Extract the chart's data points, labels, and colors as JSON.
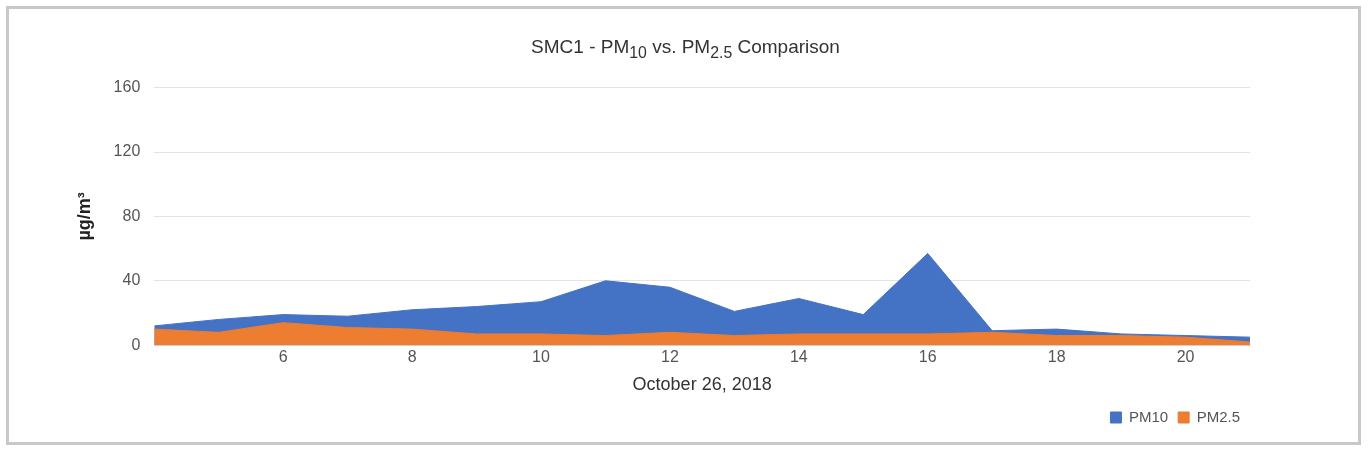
{
  "chart_data": {
    "type": "area",
    "title": "SMC1 - PM$_{10}$  vs.  PM$_{2.5}$ Comparison",
    "xlabel": "October 26, 2018",
    "ylabel": "µg/m³",
    "x": [
      4,
      5,
      6,
      7,
      8,
      9,
      10,
      11,
      12,
      13,
      14,
      15,
      16,
      17,
      18,
      19,
      20,
      21
    ],
    "series": [
      {
        "name": "PM10",
        "color": "#4472c4",
        "values": [
          12,
          16,
          19,
          18,
          22,
          24,
          27,
          40,
          36,
          21,
          29,
          19,
          57,
          9,
          10,
          7,
          6,
          5
        ]
      },
      {
        "name": "PM2.5",
        "color": "#ed7d31",
        "values": [
          10,
          8,
          14,
          11,
          10,
          7,
          7,
          6,
          8,
          6,
          7,
          7,
          7,
          8,
          6,
          6,
          5,
          2
        ]
      }
    ],
    "xlim": [
      4,
      21
    ],
    "xticks": [
      6,
      8,
      10,
      12,
      14,
      16,
      18,
      20
    ],
    "ylim": [
      0,
      160
    ],
    "yticks": [
      0,
      40,
      80,
      120,
      160
    ],
    "grid": "y",
    "legend": "bottom right",
    "marker": "none"
  }
}
